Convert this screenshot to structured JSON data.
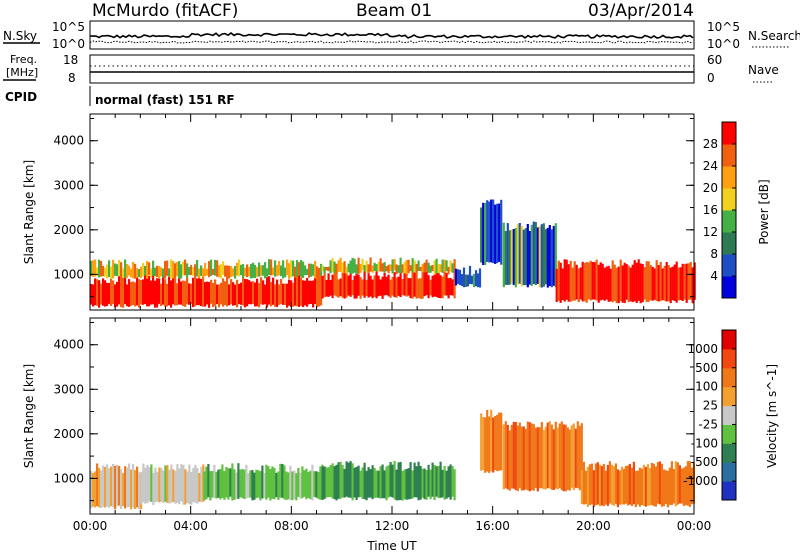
{
  "header": {
    "station": "McMurdo (fitACF)",
    "beam": "Beam 01",
    "date": "03/Apr/2014"
  },
  "noise_panel": {
    "left_label": "N.Sky",
    "right_label": "N.Search",
    "left_ticks": [
      "10^5",
      "10^0"
    ],
    "right_ticks": [
      "10^5",
      "10^0"
    ]
  },
  "freq_panel": {
    "left_label_1": "Freq.",
    "left_label_2": "[MHz]",
    "right_label": "Nave",
    "left_ticks": [
      "18",
      "8"
    ],
    "right_ticks": [
      "60",
      "0"
    ]
  },
  "cpid": {
    "label": "CPID",
    "text": "normal (fast) 151 RF"
  },
  "chart_data": [
    {
      "type": "heatmap",
      "panel": "power",
      "ylabel": "Slant Range [km]",
      "xlabel": "",
      "x_range_hours": [
        0,
        24
      ],
      "ylim": [
        200,
        4600
      ],
      "yticks": [
        1000,
        2000,
        3000,
        4000
      ],
      "colorbar": {
        "label": "Power [dB]",
        "ticks": [
          "28",
          "24",
          "20",
          "16",
          "12",
          "8",
          "4"
        ],
        "colors": [
          "#0000dd",
          "#1f4fc4",
          "#2e7a52",
          "#45b045",
          "#f0d020",
          "#ffa010",
          "#f06010",
          "#ff0000"
        ]
      },
      "echo_regions": [
        {
          "t0": 0.0,
          "t1": 9.2,
          "r0": 250,
          "r1": 900,
          "level": "high"
        },
        {
          "t0": 0.0,
          "t1": 9.2,
          "r0": 900,
          "r1": 1250,
          "level": "medium"
        },
        {
          "t0": 9.2,
          "t1": 14.5,
          "r0": 450,
          "r1": 1000,
          "level": "high"
        },
        {
          "t0": 9.2,
          "t1": 14.5,
          "r0": 1000,
          "r1": 1300,
          "level": "medium"
        },
        {
          "t0": 14.5,
          "t1": 15.5,
          "r0": 700,
          "r1": 1100,
          "level": "low"
        },
        {
          "t0": 15.5,
          "t1": 16.3,
          "r0": 1200,
          "r1": 2600,
          "level": "low"
        },
        {
          "t0": 16.4,
          "t1": 18.5,
          "r0": 700,
          "r1": 2100,
          "level": "patchy"
        },
        {
          "t0": 18.5,
          "t1": 24.0,
          "r0": 350,
          "r1": 1250,
          "level": "high"
        }
      ]
    },
    {
      "type": "heatmap",
      "panel": "velocity",
      "ylabel": "Slant Range [km]",
      "xlabel": "Time UT",
      "x_range_hours": [
        0,
        24
      ],
      "xticks": [
        "00:00",
        "04:00",
        "08:00",
        "12:00",
        "16:00",
        "20:00",
        "00:00"
      ],
      "ylim": [
        200,
        4600
      ],
      "yticks": [
        1000,
        2000,
        3000,
        4000
      ],
      "colorbar": {
        "label": "Velocity [m s^-1]",
        "ticks": [
          "1000",
          "500",
          "100",
          "25",
          "-25",
          "-100",
          "-500",
          "-1000"
        ],
        "colors": [
          "#2030c0",
          "#2a6fa0",
          "#2f8050",
          "#60c040",
          "#c8c8c8",
          "#f4a030",
          "#f07818",
          "#f04810",
          "#e00000"
        ]
      },
      "echo_regions": [
        {
          "t0": 0.0,
          "t1": 2.0,
          "r0": 300,
          "r1": 1250,
          "level": "orange-gray"
        },
        {
          "t0": 2.0,
          "t1": 4.5,
          "r0": 400,
          "r1": 1250,
          "level": "gray"
        },
        {
          "t0": 4.5,
          "t1": 9.2,
          "r0": 500,
          "r1": 1250,
          "level": "green"
        },
        {
          "t0": 9.2,
          "t1": 14.5,
          "r0": 500,
          "r1": 1300,
          "level": "teal-green"
        },
        {
          "t0": 15.5,
          "t1": 16.3,
          "r0": 1100,
          "r1": 2500,
          "level": "orange"
        },
        {
          "t0": 16.4,
          "t1": 19.5,
          "r0": 700,
          "r1": 2200,
          "level": "orange"
        },
        {
          "t0": 19.5,
          "t1": 24.0,
          "r0": 350,
          "r1": 1300,
          "level": "orange"
        }
      ]
    }
  ]
}
